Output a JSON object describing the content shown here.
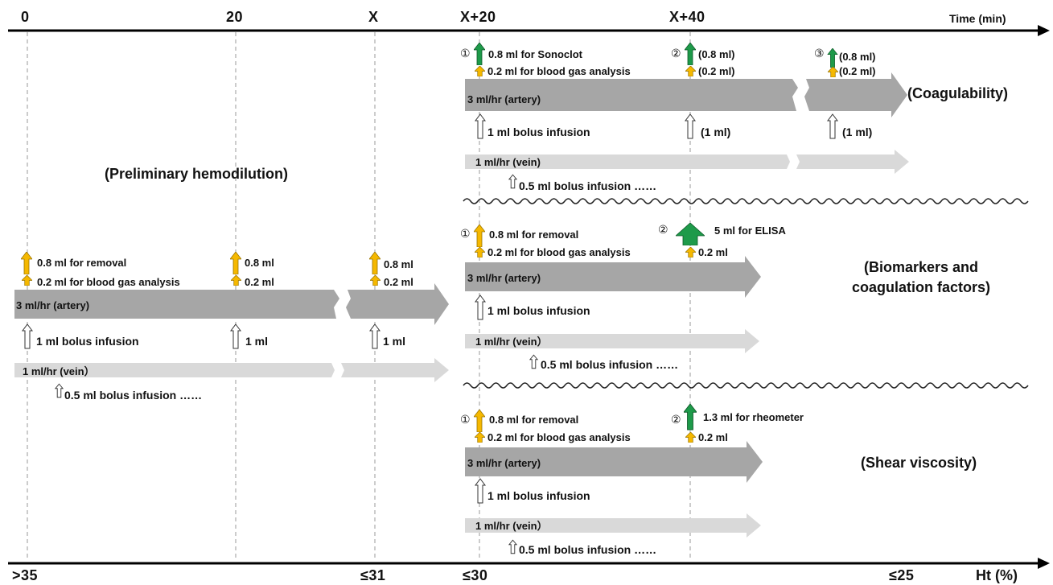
{
  "top_axis": {
    "ticks": [
      "0",
      "20",
      "X",
      "X+20",
      "X+40"
    ],
    "unit": "Time (min)"
  },
  "bottom_axis": {
    "ticks": [
      ">35",
      "≤31",
      "≤30",
      "≤25"
    ],
    "unit": "Ht (%)"
  },
  "preliminary": {
    "title": "(Preliminary hemodilution)",
    "removal_main": "0.8 ml for removal",
    "gas_main": "0.2 ml for blood gas analysis",
    "removal_short": "0.8 ml",
    "gas_short": "0.2 ml",
    "artery": "3 ml/hr (artery)",
    "bolus_main": "1 ml bolus infusion",
    "bolus_short": "1 ml",
    "vein": "1 ml/hr (vein）",
    "vein_bolus": "0.5 ml bolus infusion ……"
  },
  "coagulability": {
    "title": "(Coagulability)",
    "marker1": "①",
    "marker2": "②",
    "marker3": "③",
    "sample1": "0.8 ml for Sonoclot",
    "sample2": "(0.8 ml)",
    "sample3": "(0.8 ml)",
    "gas1": "0.2 ml for blood gas analysis",
    "gas2": "(0.2 ml)",
    "gas3": "(0.2 ml)",
    "artery": "3 ml/hr (artery)",
    "bolus1": "1 ml bolus infusion",
    "bolus2": "(1 ml)",
    "bolus3": "(1 ml)",
    "vein": "1 ml/hr (vein)",
    "vein_bolus": "0.5 ml bolus infusion ……"
  },
  "biomarkers": {
    "title_line1": "(Biomarkers and",
    "title_line2": "coagulation factors)",
    "marker1": "①",
    "marker2": "②",
    "removal": "0.8 ml for removal",
    "elisa": "5 ml for ELISA",
    "gas1": "0.2 ml for blood gas analysis",
    "gas2": "0.2 ml",
    "artery": "3 ml/hr (artery)",
    "bolus": "1 ml bolus infusion",
    "vein": "1 ml/hr (vein）",
    "vein_bolus": "0.5 ml bolus infusion ……"
  },
  "shear": {
    "title": "(Shear viscosity)",
    "marker1": "①",
    "marker2": "②",
    "removal": "0.8 ml for removal",
    "rheometer": "1.3 ml for rheometer",
    "gas1": "0.2 ml for blood gas analysis",
    "gas2": "0.2 ml",
    "artery": "3 ml/hr (artery)",
    "bolus": "1 ml bolus infusion",
    "vein": "1 ml/hr (vein）",
    "vein_bolus": "0.5 ml bolus infusion ……"
  },
  "colors": {
    "artery_bar": "#a6a6a6",
    "vein_bar": "#d9d9d9",
    "small_sample_arrow": "#f5b800",
    "large_sample_arrow": "#1e9a4a",
    "infusion_arrow": "#ffffff"
  }
}
